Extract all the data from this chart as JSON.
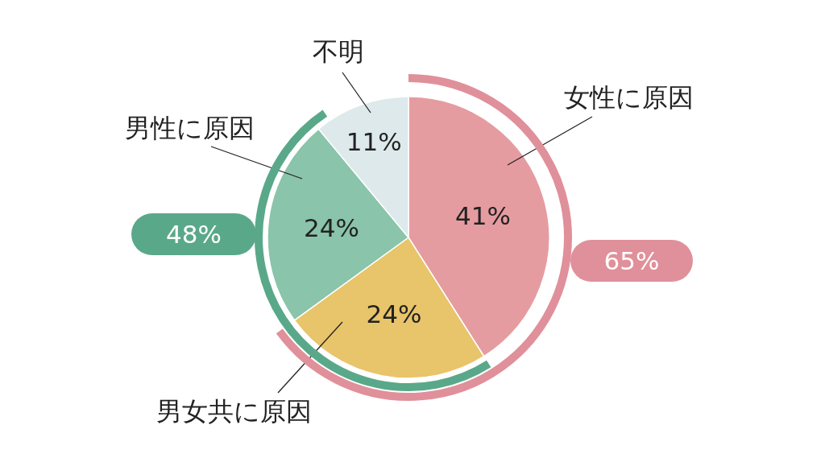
{
  "chart_data": {
    "type": "pie",
    "categories": [
      "女性に原因",
      "男女共に原因",
      "男性に原因",
      "不明"
    ],
    "values": [
      41,
      24,
      24,
      11
    ],
    "colors": [
      "#e59ca0",
      "#e8c46a",
      "#8ac4aa",
      "#dde9ea"
    ],
    "value_labels": [
      "41%",
      "24%",
      "24%",
      "11%"
    ],
    "annotations": [
      "65%",
      "48%"
    ]
  }
}
